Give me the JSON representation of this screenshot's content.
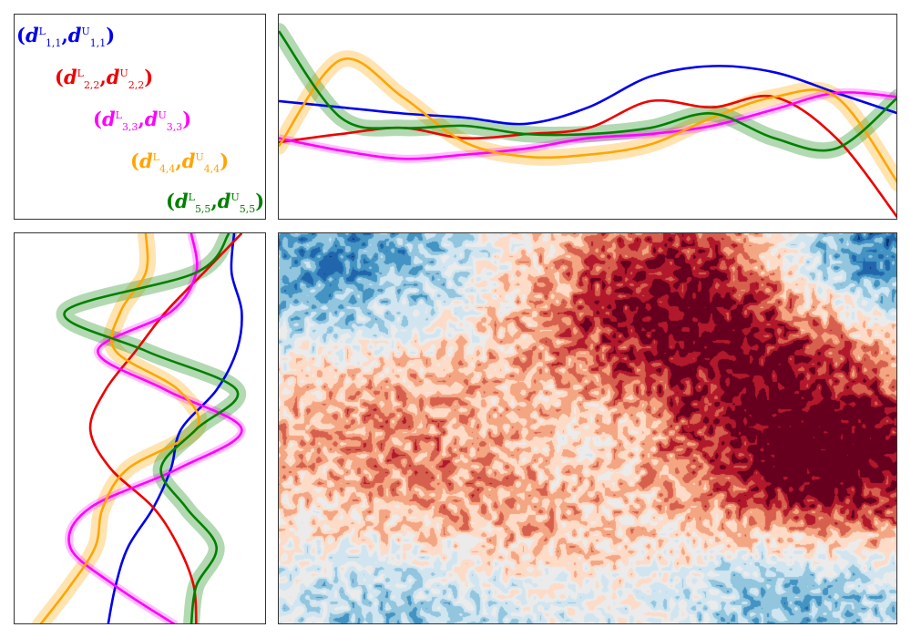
{
  "chart_data": [
    {
      "type": "legend",
      "entries": [
        {
          "name": "d_{1,1}",
          "sub": "1,1",
          "color": "#0000ee"
        },
        {
          "name": "d_{2,2}",
          "sub": "2,2",
          "color": "#ee0000"
        },
        {
          "name": "d_{3,3}",
          "sub": "3,3",
          "color": "#ff00ff"
        },
        {
          "name": "d_{4,4}",
          "sub": "4,4",
          "color": "#ffa500"
        },
        {
          "name": "d_{5,5}",
          "sub": "5,5",
          "color": "#008000"
        }
      ],
      "sup_lower": "L",
      "sup_upper": "U"
    },
    {
      "type": "line",
      "axes": "hidden",
      "x": [
        0,
        0.1,
        0.2,
        0.3,
        0.4,
        0.5,
        0.6,
        0.7,
        0.8,
        0.9,
        1.0
      ],
      "ylim": [
        0,
        1
      ],
      "series": [
        {
          "id": "blue",
          "color": "#0000ee",
          "band": false,
          "values": [
            0.42,
            0.45,
            0.48,
            0.5,
            0.53,
            0.45,
            0.3,
            0.25,
            0.28,
            0.38,
            0.48
          ]
        },
        {
          "id": "red",
          "color": "#ee0000",
          "band": false,
          "values": [
            0.62,
            0.58,
            0.55,
            0.6,
            0.58,
            0.55,
            0.42,
            0.45,
            0.4,
            0.6,
            0.99
          ]
        },
        {
          "id": "magenta",
          "color": "#ff00ff",
          "band": false,
          "values": [
            0.6,
            0.66,
            0.7,
            0.68,
            0.65,
            0.6,
            0.58,
            0.54,
            0.46,
            0.38,
            0.4
          ]
        },
        {
          "id": "orange",
          "color": "#ffa500",
          "band": true,
          "values": [
            0.64,
            0.22,
            0.4,
            0.62,
            0.69,
            0.68,
            0.63,
            0.5,
            0.4,
            0.4,
            0.82
          ]
        },
        {
          "id": "green",
          "color": "#008000",
          "band": true,
          "values": [
            0.08,
            0.5,
            0.55,
            0.54,
            0.58,
            0.58,
            0.55,
            0.48,
            0.6,
            0.65,
            0.4
          ]
        }
      ]
    },
    {
      "type": "line",
      "axes": "hidden",
      "orientation": "vertical",
      "y": [
        0,
        0.1,
        0.2,
        0.3,
        0.4,
        0.5,
        0.6,
        0.7,
        0.8,
        0.9,
        1.0
      ],
      "xlim": [
        0,
        1
      ],
      "series": [
        {
          "id": "blue",
          "color": "#0000ee",
          "band": false,
          "values": [
            0.87,
            0.86,
            0.9,
            0.88,
            0.8,
            0.66,
            0.62,
            0.55,
            0.45,
            0.4,
            0.37
          ]
        },
        {
          "id": "red",
          "color": "#ee0000",
          "band": false,
          "values": [
            0.9,
            0.75,
            0.6,
            0.48,
            0.36,
            0.3,
            0.38,
            0.55,
            0.65,
            0.71,
            0.72
          ]
        },
        {
          "id": "magenta",
          "color": "#ff00ff",
          "band": false,
          "values": [
            0.7,
            0.72,
            0.62,
            0.33,
            0.6,
            0.9,
            0.65,
            0.3,
            0.22,
            0.4,
            0.64
          ]
        },
        {
          "id": "orange",
          "color": "#ffa500",
          "band": true,
          "values": [
            0.52,
            0.52,
            0.42,
            0.4,
            0.65,
            0.72,
            0.45,
            0.35,
            0.32,
            0.22,
            0.1
          ]
        },
        {
          "id": "green",
          "color": "#008000",
          "band": true,
          "values": [
            0.85,
            0.72,
            0.2,
            0.52,
            0.88,
            0.72,
            0.58,
            0.68,
            0.8,
            0.72,
            0.7
          ]
        }
      ]
    },
    {
      "type": "heatmap",
      "axes": "hidden",
      "colormap": "RdBu_r",
      "field_description_centers": [
        {
          "x": 0.1,
          "y": 0.08,
          "v": -0.9,
          "r": 0.22
        },
        {
          "x": 0.5,
          "y": 0.5,
          "v": -0.5,
          "r": 0.14
        },
        {
          "x": 0.95,
          "y": 0.05,
          "v": -1.2,
          "r": 0.12
        },
        {
          "x": 0.25,
          "y": 0.95,
          "v": -0.8,
          "r": 0.18
        },
        {
          "x": 0.85,
          "y": 0.93,
          "v": -0.7,
          "r": 0.15
        },
        {
          "x": 0.62,
          "y": 0.1,
          "v": 0.9,
          "r": 0.2
        },
        {
          "x": 0.9,
          "y": 0.6,
          "v": 1.3,
          "r": 0.16
        },
        {
          "x": 0.15,
          "y": 0.45,
          "v": 0.7,
          "r": 0.2
        },
        {
          "x": 0.35,
          "y": 0.78,
          "v": 0.7,
          "r": 0.18
        },
        {
          "x": 0.7,
          "y": 0.35,
          "v": 0.8,
          "r": 0.2
        }
      ]
    }
  ]
}
